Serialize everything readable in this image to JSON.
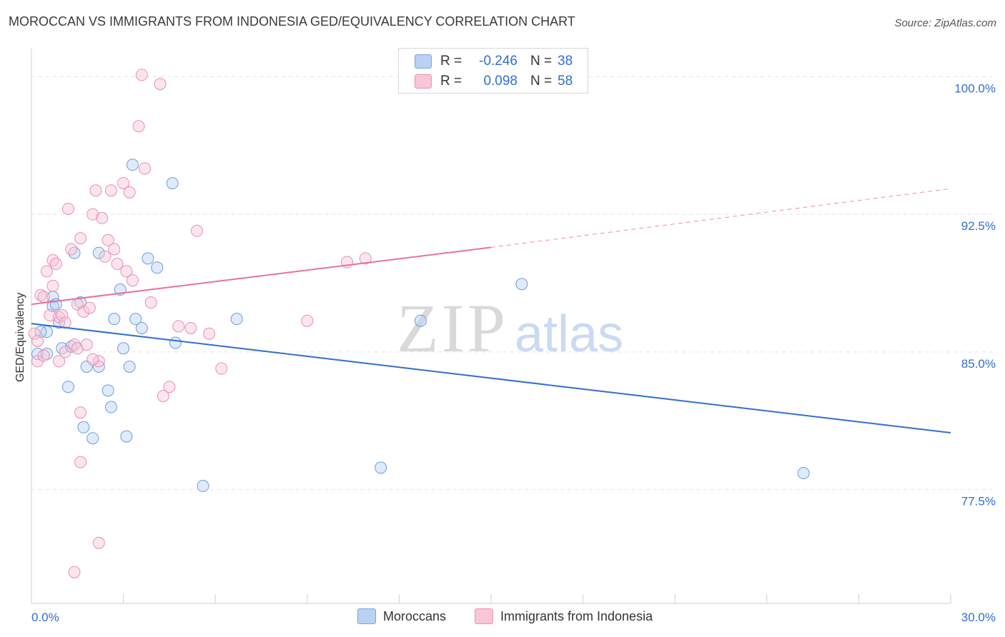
{
  "title": "MOROCCAN VS IMMIGRANTS FROM INDONESIA GED/EQUIVALENCY CORRELATION CHART",
  "source": "Source: ZipAtlas.com",
  "watermark": {
    "zip": "ZIP",
    "atlas": "atlas"
  },
  "stats": {
    "r_label": "R =",
    "n_label": "N =",
    "rows": [
      {
        "r": "-0.246",
        "n": "38",
        "fill": "#b9d2f3",
        "stroke": "#7aa4e0"
      },
      {
        "r": "0.098",
        "n": "58",
        "fill": "#f9c6d6",
        "stroke": "#ec8fae"
      }
    ]
  },
  "legend": [
    {
      "label": "Moroccans",
      "fill": "#b9d2f3",
      "stroke": "#7aa4e0"
    },
    {
      "label": "Immigrants from Indonesia",
      "fill": "#f9c6d6",
      "stroke": "#ec8fae"
    }
  ],
  "colors": {
    "blue_line": "#2f6fd1",
    "pink_line": "#e8739a",
    "tick_text": "#2f6fd1",
    "grid": "#e3e3e3"
  },
  "chart_data": {
    "type": "scatter",
    "ylabel": "GED/Equivalency",
    "xlim": [
      0,
      30
    ],
    "ylim": [
      71.3,
      101.3
    ],
    "x_tick_labels": [
      "0.0%",
      "30.0%"
    ],
    "y_ticks": [
      100.0,
      92.5,
      85.0,
      77.5
    ],
    "y_tick_labels": [
      "100.0%",
      "92.5%",
      "85.0%",
      "77.5%"
    ],
    "grid": true,
    "legend_position": "bottom-center",
    "series": [
      {
        "name": "Moroccans",
        "points": [
          [
            0.2,
            84.9
          ],
          [
            0.5,
            86.1
          ],
          [
            0.5,
            84.9
          ],
          [
            0.7,
            88.0
          ],
          [
            0.7,
            87.5
          ],
          [
            0.9,
            86.6
          ],
          [
            1.0,
            85.2
          ],
          [
            1.3,
            85.3
          ],
          [
            1.2,
            83.1
          ],
          [
            1.4,
            90.4
          ],
          [
            1.6,
            87.7
          ],
          [
            1.8,
            84.2
          ],
          [
            2.2,
            84.2
          ],
          [
            2.2,
            90.4
          ],
          [
            2.5,
            82.9
          ],
          [
            2.6,
            82.0
          ],
          [
            2.9,
            88.4
          ],
          [
            2.7,
            86.8
          ],
          [
            3.0,
            85.2
          ],
          [
            3.2,
            84.2
          ],
          [
            3.1,
            80.4
          ],
          [
            3.3,
            95.2
          ],
          [
            3.4,
            86.8
          ],
          [
            3.6,
            86.3
          ],
          [
            3.8,
            90.1
          ],
          [
            4.1,
            89.6
          ],
          [
            4.6,
            94.2
          ],
          [
            4.7,
            85.5
          ],
          [
            5.6,
            77.7
          ],
          [
            6.7,
            86.8
          ],
          [
            11.4,
            78.7
          ],
          [
            12.7,
            86.7
          ],
          [
            16.0,
            88.7
          ],
          [
            25.2,
            78.4
          ],
          [
            1.7,
            80.9
          ],
          [
            2.0,
            80.3
          ],
          [
            0.8,
            87.6
          ],
          [
            0.3,
            86.1
          ]
        ],
        "trend": {
          "x": [
            0,
            30
          ],
          "y": [
            86.55,
            80.6
          ]
        }
      },
      {
        "name": "Immigrants from Indonesia",
        "points": [
          [
            0.1,
            86.0
          ],
          [
            0.2,
            85.6
          ],
          [
            0.2,
            84.5
          ],
          [
            0.3,
            88.1
          ],
          [
            0.4,
            88.0
          ],
          [
            0.5,
            89.4
          ],
          [
            0.6,
            87.0
          ],
          [
            0.7,
            88.6
          ],
          [
            0.7,
            90.0
          ],
          [
            0.8,
            89.8
          ],
          [
            0.9,
            86.9
          ],
          [
            0.9,
            84.5
          ],
          [
            1.0,
            87.0
          ],
          [
            1.1,
            86.6
          ],
          [
            1.1,
            85.0
          ],
          [
            1.2,
            92.8
          ],
          [
            1.3,
            90.6
          ],
          [
            1.4,
            85.4
          ],
          [
            1.5,
            87.6
          ],
          [
            1.5,
            85.2
          ],
          [
            1.6,
            91.2
          ],
          [
            1.7,
            87.2
          ],
          [
            1.8,
            85.4
          ],
          [
            1.9,
            87.4
          ],
          [
            2.0,
            92.5
          ],
          [
            2.1,
            93.8
          ],
          [
            2.2,
            84.5
          ],
          [
            2.3,
            92.3
          ],
          [
            2.4,
            90.2
          ],
          [
            2.5,
            91.1
          ],
          [
            2.6,
            93.8
          ],
          [
            2.7,
            90.6
          ],
          [
            2.8,
            89.8
          ],
          [
            3.0,
            94.2
          ],
          [
            3.1,
            89.4
          ],
          [
            3.2,
            93.7
          ],
          [
            3.3,
            88.9
          ],
          [
            3.5,
            97.3
          ],
          [
            3.6,
            100.1
          ],
          [
            3.7,
            95.0
          ],
          [
            3.9,
            87.7
          ],
          [
            4.2,
            99.6
          ],
          [
            4.3,
            82.6
          ],
          [
            4.5,
            83.1
          ],
          [
            4.8,
            86.4
          ],
          [
            5.2,
            86.3
          ],
          [
            5.4,
            91.6
          ],
          [
            5.8,
            86.0
          ],
          [
            6.2,
            84.1
          ],
          [
            9.0,
            86.7
          ],
          [
            10.3,
            89.9
          ],
          [
            10.9,
            90.1
          ],
          [
            1.6,
            81.7
          ],
          [
            1.6,
            79.0
          ],
          [
            2.2,
            74.6
          ],
          [
            1.4,
            73.0
          ],
          [
            2.0,
            84.6
          ],
          [
            0.4,
            84.8
          ]
        ],
        "trend": {
          "x": [
            0,
            15
          ],
          "y": [
            87.6,
            90.7
          ]
        },
        "trend_extension": {
          "x": [
            15,
            30
          ],
          "y": [
            90.7,
            93.9
          ]
        }
      }
    ]
  }
}
